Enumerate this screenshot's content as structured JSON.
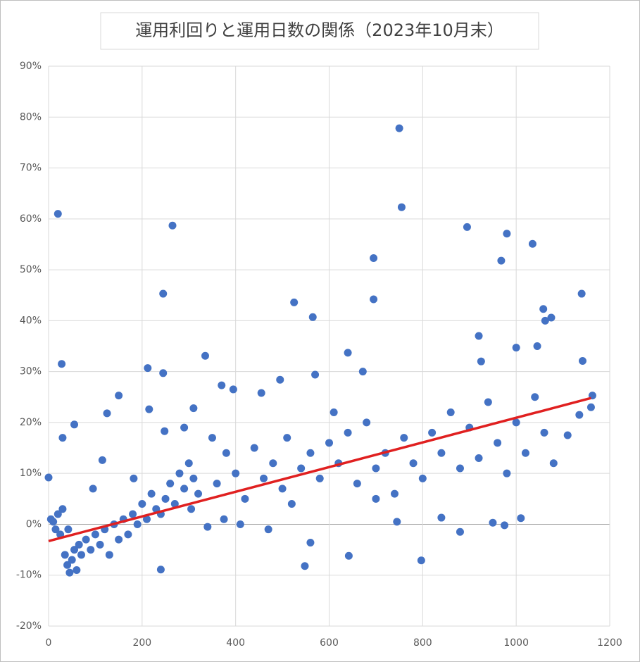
{
  "chart_data": {
    "type": "scatter",
    "title": "運用利回りと運用日数の関係（2023年10月末）",
    "color": "#4472c4",
    "x": [
      20,
      28,
      265,
      245,
      750,
      755,
      695,
      695,
      525,
      565,
      895,
      980,
      968,
      1035,
      1140,
      1058,
      1075,
      1062,
      1142,
      920,
      797,
      642,
      548,
      240,
      0,
      335,
      212,
      55,
      5,
      10,
      15,
      20,
      25,
      30,
      35,
      40,
      45,
      50,
      55,
      60,
      65,
      70,
      80,
      90,
      100,
      110,
      120,
      130,
      140,
      150,
      160,
      170,
      180,
      190,
      200,
      210,
      220,
      230,
      240,
      250,
      260,
      270,
      280,
      290,
      300,
      305,
      310,
      320,
      340,
      350,
      360,
      380,
      400,
      420,
      440,
      460,
      480,
      500,
      510,
      520,
      540,
      560,
      580,
      600,
      610,
      620,
      640,
      660,
      680,
      700,
      720,
      740,
      760,
      780,
      800,
      820,
      840,
      860,
      880,
      900,
      920,
      940,
      960,
      980,
      1000,
      1010,
      1020,
      1040,
      1060,
      1080,
      1110,
      1135,
      1160,
      1163,
      1000,
      1045,
      925,
      672,
      640,
      125,
      150,
      30,
      42,
      95,
      115,
      182,
      215,
      245,
      248,
      290,
      310,
      370,
      395,
      455,
      495,
      570,
      700,
      745,
      840,
      880,
      950,
      975,
      560,
      470,
      410,
      375
    ],
    "values": [
      61,
      31.5,
      58.7,
      45.3,
      77.8,
      62.3,
      52.3,
      44.2,
      43.6,
      40.7,
      58.4,
      57.1,
      51.8,
      55.1,
      45.3,
      42.3,
      40.6,
      40,
      32.1,
      37,
      -7.1,
      -6.2,
      -8.2,
      -8.9,
      9.2,
      33.1,
      30.7,
      19.6,
      1,
      0.5,
      -1,
      2,
      -2,
      3,
      -6,
      -8,
      -9.5,
      -7,
      -5,
      -9,
      -4,
      -6,
      -3,
      -5,
      -2,
      -4,
      -1,
      -6,
      0,
      -3,
      1,
      -2,
      2,
      0,
      4,
      1,
      6,
      3,
      2,
      5,
      8,
      4,
      10,
      7,
      12,
      3,
      9,
      6,
      -0.5,
      17,
      8,
      14,
      10,
      5,
      15,
      9,
      12,
      7,
      17,
      4,
      11,
      14,
      9,
      16,
      22,
      12,
      18,
      8,
      20,
      11,
      14,
      6,
      17,
      12,
      9,
      18,
      14,
      22,
      11,
      19,
      13,
      24,
      16,
      10,
      20,
      1.2,
      14,
      25,
      18,
      12,
      17.5,
      21.5,
      23,
      25.3,
      34.7,
      35,
      32,
      30,
      33.7,
      21.8,
      25.3,
      17,
      -1,
      7,
      12.6,
      9,
      22.6,
      29.7,
      18.3,
      19,
      22.8,
      27.3,
      26.5,
      25.8,
      28.4,
      29.4,
      5,
      0.5,
      1.3,
      -1.5,
      0.3,
      -0.2,
      -3.6,
      -1,
      0,
      1
    ],
    "trendline": {
      "x": [
        0,
        1160
      ],
      "values": [
        -3.3,
        24.8
      ],
      "color": "#e02020"
    },
    "xlim": [
      0,
      1200
    ],
    "xticks": [
      0,
      200,
      400,
      600,
      800,
      1000,
      1200
    ],
    "ylim": [
      -20,
      90
    ],
    "yticks": [
      {
        "value": -20,
        "label": "-20%"
      },
      {
        "value": -10,
        "label": "-10%"
      },
      {
        "value": 0,
        "label": "0%"
      },
      {
        "value": 10,
        "label": "10%"
      },
      {
        "value": 20,
        "label": "20%"
      },
      {
        "value": 30,
        "label": "30%"
      },
      {
        "value": 40,
        "label": "40%"
      },
      {
        "value": 50,
        "label": "50%"
      },
      {
        "value": 60,
        "label": "60%"
      },
      {
        "value": 70,
        "label": "70%"
      },
      {
        "value": 80,
        "label": "80%"
      },
      {
        "value": 90,
        "label": "90%"
      }
    ],
    "grid": true
  }
}
